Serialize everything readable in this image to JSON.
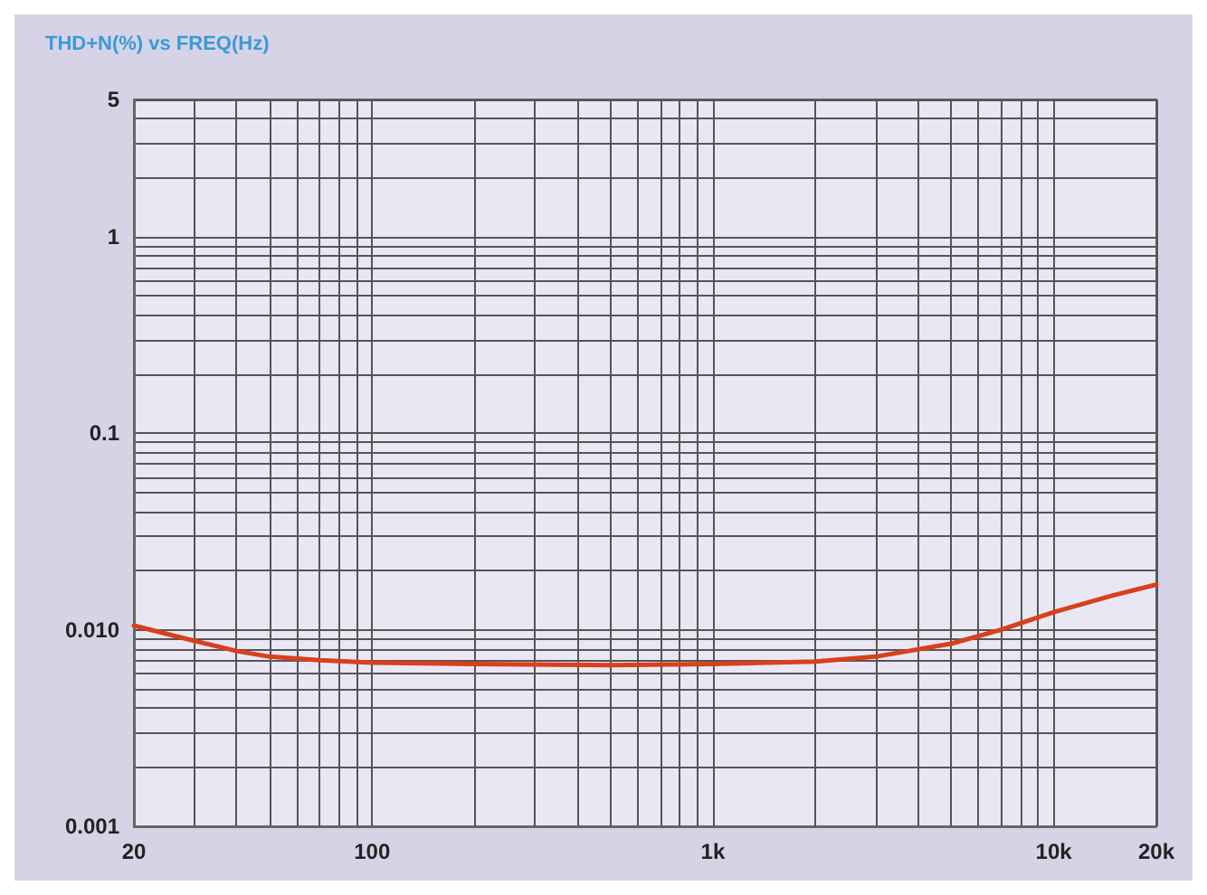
{
  "chart_data": {
    "type": "line",
    "title": "THD+N(%) vs FREQ(Hz)",
    "log": "xy",
    "grid": true,
    "marker": "none",
    "line_style": "solid",
    "xlim": [
      20,
      20000
    ],
    "ylim": [
      0.001,
      5
    ],
    "xticks": [
      20,
      {
        "value": 30,
        "label": null
      },
      {
        "value": 40,
        "label": null
      },
      {
        "value": 50,
        "label": null
      },
      {
        "value": 60,
        "label": null
      },
      {
        "value": 70,
        "label": null
      },
      {
        "value": 80,
        "label": null
      },
      {
        "value": 90,
        "label": null
      },
      100,
      {
        "value": 200,
        "label": null
      },
      {
        "value": 300,
        "label": null
      },
      {
        "value": 400,
        "label": null
      },
      {
        "value": 500,
        "label": null
      },
      {
        "value": 600,
        "label": null
      },
      {
        "value": 700,
        "label": null
      },
      {
        "value": 800,
        "label": null
      },
      {
        "value": 900,
        "label": null
      },
      {
        "value": 1000,
        "label": "1k"
      },
      {
        "value": 2000,
        "label": null
      },
      {
        "value": 3000,
        "label": null
      },
      {
        "value": 4000,
        "label": null
      },
      {
        "value": 5000,
        "label": null
      },
      {
        "value": 6000,
        "label": null
      },
      {
        "value": 7000,
        "label": null
      },
      {
        "value": 8000,
        "label": null
      },
      {
        "value": 9000,
        "label": null
      },
      {
        "value": 10000,
        "label": "10k"
      },
      {
        "value": 20000,
        "label": "20k"
      }
    ],
    "yticks": [
      0.001,
      {
        "value": 0.002,
        "label": null
      },
      {
        "value": 0.003,
        "label": null
      },
      {
        "value": 0.004,
        "label": null
      },
      {
        "value": 0.005,
        "label": null
      },
      {
        "value": 0.006,
        "label": null
      },
      {
        "value": 0.007,
        "label": null
      },
      {
        "value": 0.008,
        "label": null
      },
      {
        "value": 0.009,
        "label": null
      },
      {
        "value": 0.01,
        "label": "0.010"
      },
      {
        "value": 0.02,
        "label": null
      },
      {
        "value": 0.03,
        "label": null
      },
      {
        "value": 0.04,
        "label": null
      },
      {
        "value": 0.05,
        "label": null
      },
      {
        "value": 0.06,
        "label": null
      },
      {
        "value": 0.07,
        "label": null
      },
      {
        "value": 0.08,
        "label": null
      },
      {
        "value": 0.09,
        "label": null
      },
      0.1,
      {
        "value": 0.2,
        "label": null
      },
      {
        "value": 0.3,
        "label": null
      },
      {
        "value": 0.4,
        "label": null
      },
      {
        "value": 0.5,
        "label": null
      },
      {
        "value": 0.6,
        "label": null
      },
      {
        "value": 0.7,
        "label": null
      },
      {
        "value": 0.8,
        "label": null
      },
      {
        "value": 0.9,
        "label": null
      },
      1,
      {
        "value": 2,
        "label": null
      },
      {
        "value": 3,
        "label": null
      },
      {
        "value": 4,
        "label": null
      },
      5
    ],
    "x": [
      20,
      30,
      40,
      50,
      70,
      100,
      200,
      500,
      1000,
      2000,
      3000,
      5000,
      7000,
      10000,
      15000,
      20000
    ],
    "series": [
      {
        "color": "#d8401c",
        "values": [
          0.0105,
          0.0088,
          0.0078,
          0.0073,
          0.007,
          0.0068,
          0.0067,
          0.0066,
          0.0067,
          0.0069,
          0.0073,
          0.0085,
          0.01,
          0.0123,
          0.015,
          0.017
        ]
      }
    ]
  }
}
